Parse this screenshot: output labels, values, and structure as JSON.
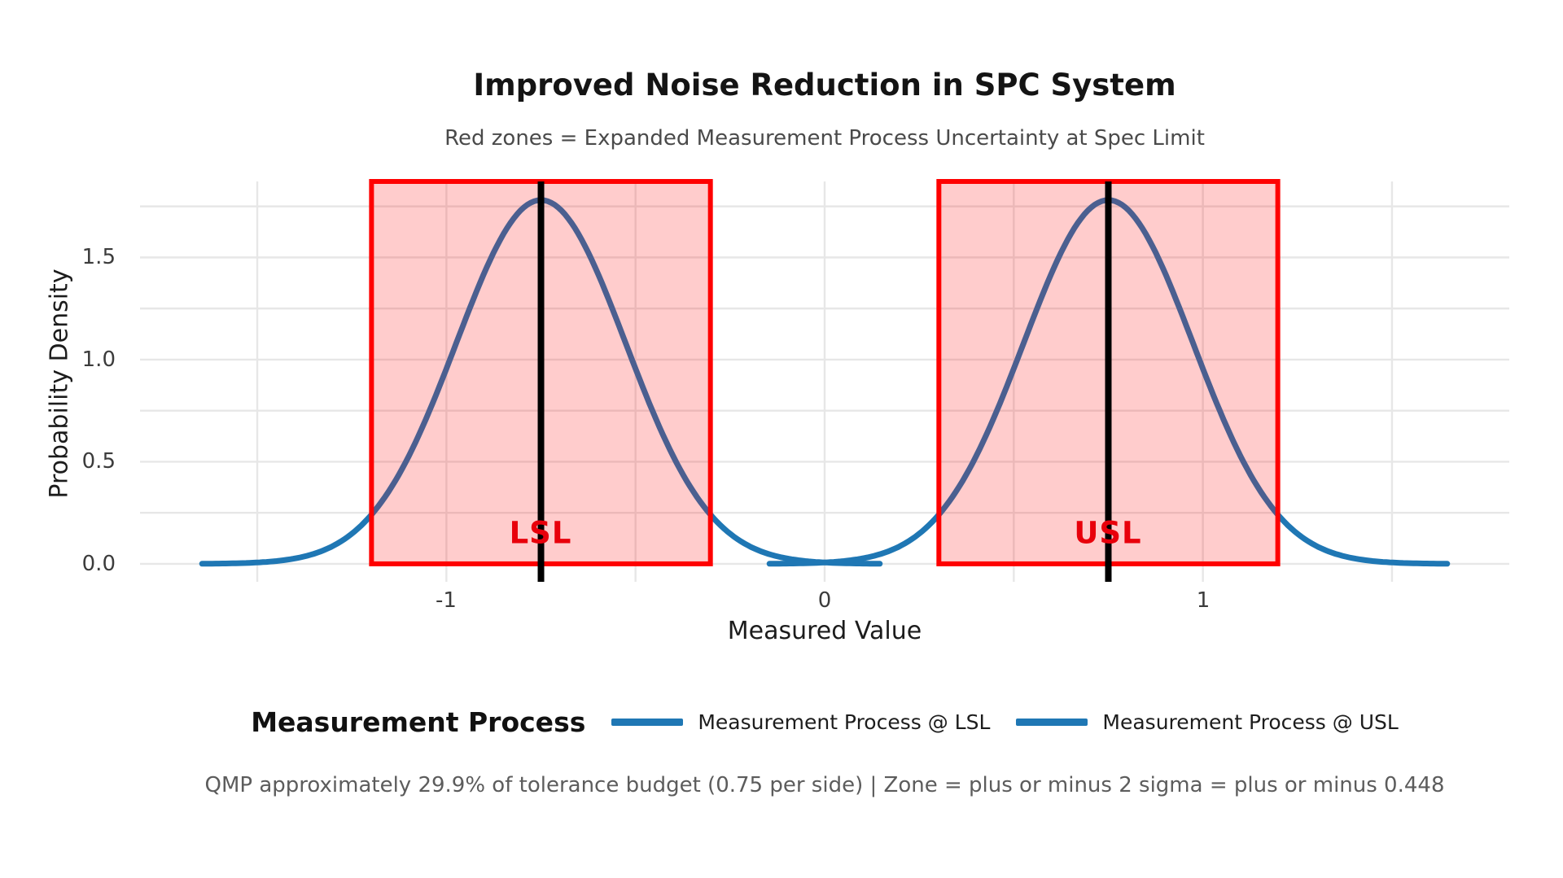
{
  "title": "Improved Noise Reduction in SPC System",
  "subtitle": "Red zones = Expanded Measurement Process Uncertainty at Spec Limit",
  "caption": "QMP approximately 29.9% of tolerance budget (0.75 per side) | Zone = plus or minus 2 sigma = plus or minus 0.448",
  "legend": {
    "title": "Measurement Process",
    "entries": [
      {
        "label": "Measurement Process @ LSL",
        "color": "#1f77b4"
      },
      {
        "label": "Measurement Process @ USL",
        "color": "#1f77b4"
      }
    ]
  },
  "colors": {
    "curve": "#1f77b4",
    "zone_fill": "rgba(255,0,0,0.2)",
    "zone_edge": "#ff0000",
    "spec_line": "#000000",
    "zone_label": "#e8000b",
    "gridline": "#e7e7e7",
    "background": "#ffffff"
  },
  "chart_data": {
    "type": "line",
    "title": "Improved Noise Reduction in SPC System",
    "subtitle": "Red zones = Expanded Measurement Process Uncertainty at Spec Limit",
    "xlabel": "Measured Value",
    "ylabel": "Probability Density",
    "xlim": [
      -1.81,
      1.81
    ],
    "ylim": [
      -0.088,
      1.872
    ],
    "grid": true,
    "legend_position": "bottom-center",
    "x_ticks": [
      {
        "value": -1,
        "label": "-1"
      },
      {
        "value": 0,
        "label": "0"
      },
      {
        "value": 1,
        "label": "1"
      }
    ],
    "y_ticks": [
      {
        "value": 0.0,
        "label": "0.0"
      },
      {
        "value": 0.5,
        "label": "0.5"
      },
      {
        "value": 1.0,
        "label": "1.0"
      },
      {
        "value": 1.5,
        "label": "1.5"
      }
    ],
    "x_gridlines": [
      -1.5,
      -1.0,
      -0.5,
      0,
      0.5,
      1.0,
      1.5
    ],
    "y_gridlines": [
      0,
      0.25,
      0.5,
      0.75,
      1.0,
      1.25,
      1.5,
      1.75
    ],
    "spec_limits": {
      "lsl": -0.75,
      "usl": 0.75,
      "tolerance_per_side": 0.75
    },
    "uncertainty": {
      "sigma": 0.224,
      "zone_half_width_2sigma": 0.448,
      "qmp_percent_of_tolerance": 29.9
    },
    "series": [
      {
        "name": "Measurement Process @ LSL",
        "shape": "normal_pdf",
        "mean": -0.75,
        "sigma": 0.224,
        "peak_density": 1.781,
        "x_range": [
          -1.646,
          0.146
        ],
        "color": "#1f77b4"
      },
      {
        "name": "Measurement Process @ USL",
        "shape": "normal_pdf",
        "mean": 0.75,
        "sigma": 0.224,
        "peak_density": 1.781,
        "x_range": [
          -0.146,
          1.646
        ],
        "color": "#1f77b4"
      }
    ],
    "spec_zones": [
      {
        "label": "LSL",
        "center": -0.75,
        "half_width": 0.448,
        "x_range": [
          -1.198,
          -0.302
        ],
        "fill": "rgba(255,0,0,0.2)",
        "edge": "#ff0000",
        "line_color": "#000000",
        "label_color": "#e8000b"
      },
      {
        "label": "USL",
        "center": 0.75,
        "half_width": 0.448,
        "x_range": [
          0.302,
          1.198
        ],
        "fill": "rgba(255,0,0,0.2)",
        "edge": "#ff0000",
        "line_color": "#000000",
        "label_color": "#e8000b"
      }
    ]
  }
}
